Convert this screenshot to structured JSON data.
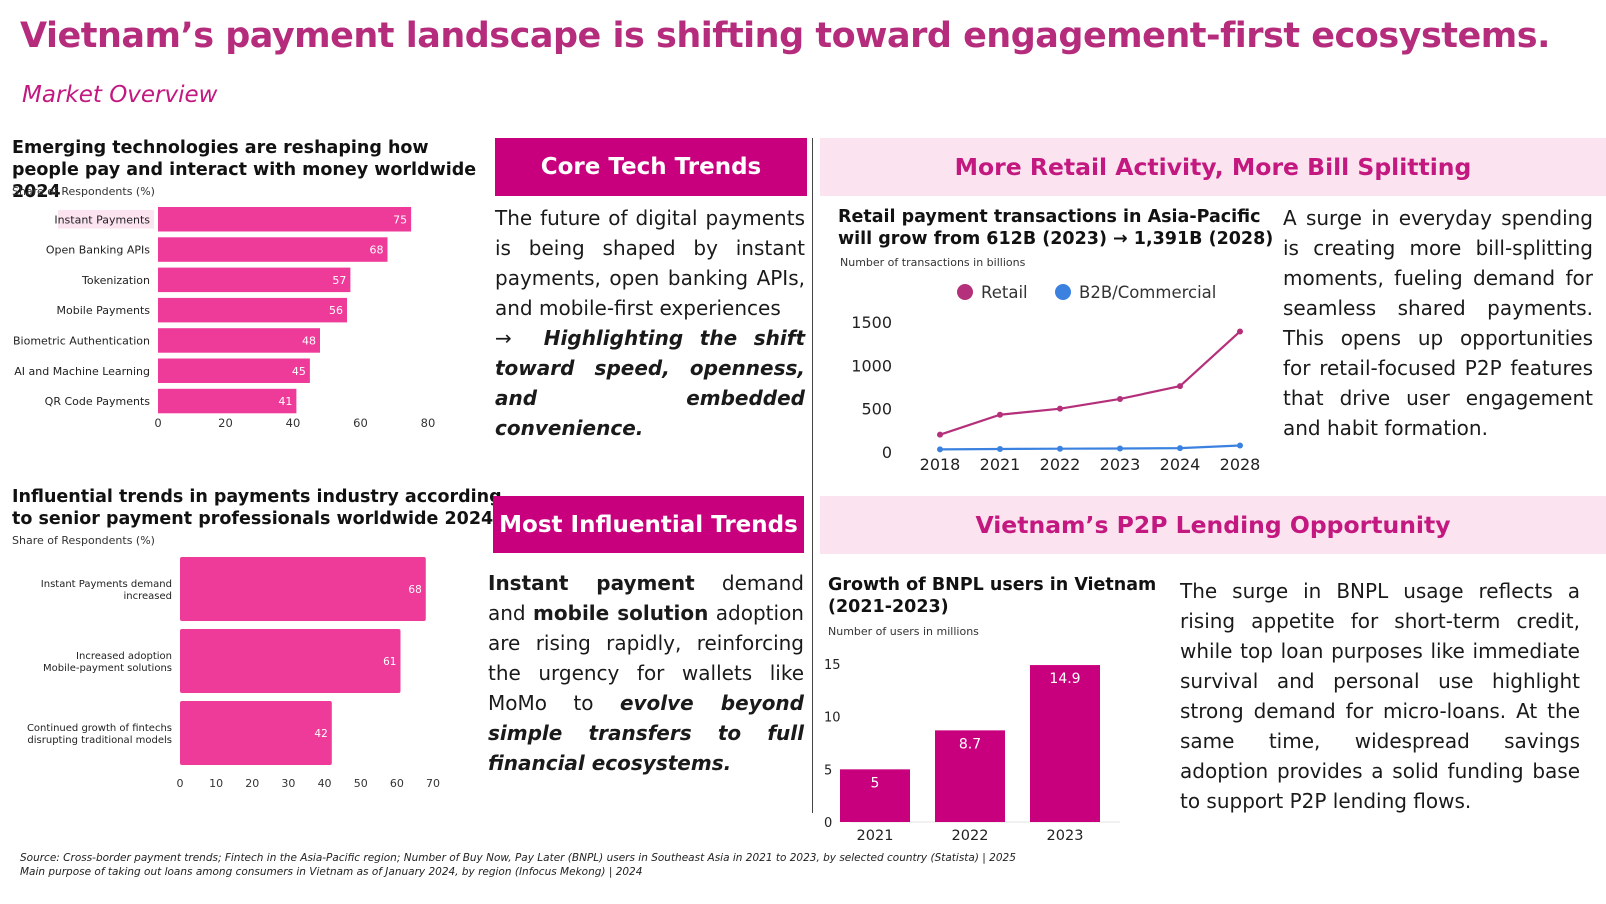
{
  "title": "Vietnam’s payment landscape is shifting toward engagement-first ecosystems.",
  "subtitle": "Market Overview",
  "colors": {
    "accent": "#c9007e",
    "title": "#b62c7d",
    "bar": "#ee3a98",
    "light_bg": "#fbe3ef",
    "retail": "#b5307a",
    "b2b": "#3b82e0"
  },
  "core_tech": {
    "banner": "Core Tech Trends",
    "text_plain": "The future of digital payments is being shaped by instant payments, open banking APIs, and mobile-first experiences",
    "arrow": "→",
    "text_emphasis": "Highlighting the shift toward speed, openness, and embedded convenience."
  },
  "influential": {
    "banner": "Most Influential Trends",
    "bold1": "Instant payment",
    "t1": " demand and ",
    "bold2": "mobile solution",
    "t2": " adoption are rising rapidly, reinforcing the urgency for wallets like MoMo to ",
    "italic1": "evolve beyond simple transfers to full financial ecosystems."
  },
  "retail_section": {
    "banner": "More Retail Activity, More Bill Splitting",
    "text": "A surge in everyday spending is creating more bill-splitting moments, fueling demand for seamless shared payments. This opens up opportunities for retail-focused P2P features that drive user engagement and habit formation."
  },
  "p2p_section": {
    "banner": "Vietnam’s P2P Lending Opportunity",
    "text": "The surge in BNPL usage reflects a rising appetite for short-term credit, while top loan purposes like immediate survival and personal use highlight strong demand for micro-loans. At the same time, widespread savings adoption provides a solid funding base to support P2P lending flows."
  },
  "source": {
    "line1": "Source: Cross-border payment trends; Fintech in the Asia-Pacific region; Number of Buy Now, Pay Later (BNPL) users in Southeast Asia in 2021 to 2023, by selected country (Statista) | 2025",
    "line2": "Main purpose of taking out loans among consumers in Vietnam as of January 2024, by region (Infocus Mekong) | 2024"
  },
  "chart_data": [
    {
      "type": "bar",
      "orientation": "horizontal",
      "title": "Emerging technologies are reshaping how people pay and interact with money worldwide 2024",
      "ylabel": "Share of Respondents (%)",
      "categories": [
        "Instant Payments",
        "Open Banking APIs",
        "Tokenization",
        "Mobile Payments",
        "Biometric Authentication",
        "AI and Machine Learning",
        "QR Code Payments"
      ],
      "values": [
        75,
        68,
        57,
        56,
        48,
        45,
        41
      ],
      "highlight": "Instant Payments",
      "xlim": [
        0,
        80
      ],
      "xticks": [
        0,
        20,
        40,
        60,
        80
      ]
    },
    {
      "type": "bar",
      "orientation": "horizontal",
      "title": "Influential trends in payments industry according to senior payment professionals worldwide 2024",
      "ylabel": "Share of Respondents (%)",
      "categories": [
        [
          "Instant Payments demand",
          "increased"
        ],
        [
          "Increased adoption",
          "Mobile-payment solutions"
        ],
        [
          "Continued growth of fintechs",
          "disrupting traditional models"
        ]
      ],
      "values": [
        68,
        61,
        42
      ],
      "xlim": [
        0,
        70
      ],
      "xticks": [
        0,
        10,
        20,
        30,
        40,
        50,
        60,
        70
      ]
    },
    {
      "type": "line",
      "title": "Retail payment transactions in Asia-Pacific will grow from 612B (2023) → 1,391B (2028)",
      "ylabel": "Number of transactions in billions",
      "x": [
        "2018",
        "2021",
        "2022",
        "2023",
        "2024",
        "2028"
      ],
      "series": [
        {
          "name": "Retail",
          "values": [
            200,
            430,
            500,
            612,
            760,
            1391
          ]
        },
        {
          "name": "B2B/Commercial",
          "values": [
            30,
            35,
            38,
            40,
            45,
            75
          ]
        }
      ],
      "ylim": [
        0,
        1500
      ],
      "yticks": [
        0,
        500,
        1000,
        1500
      ]
    },
    {
      "type": "bar",
      "title": "Growth of BNPL users in Vietnam (2021-2023)",
      "ylabel": "Number of users in millions",
      "categories": [
        "2021",
        "2022",
        "2023"
      ],
      "values": [
        5,
        8.7,
        14.9
      ],
      "ylim": [
        0,
        15
      ],
      "yticks": [
        0,
        5,
        10,
        15
      ]
    }
  ]
}
